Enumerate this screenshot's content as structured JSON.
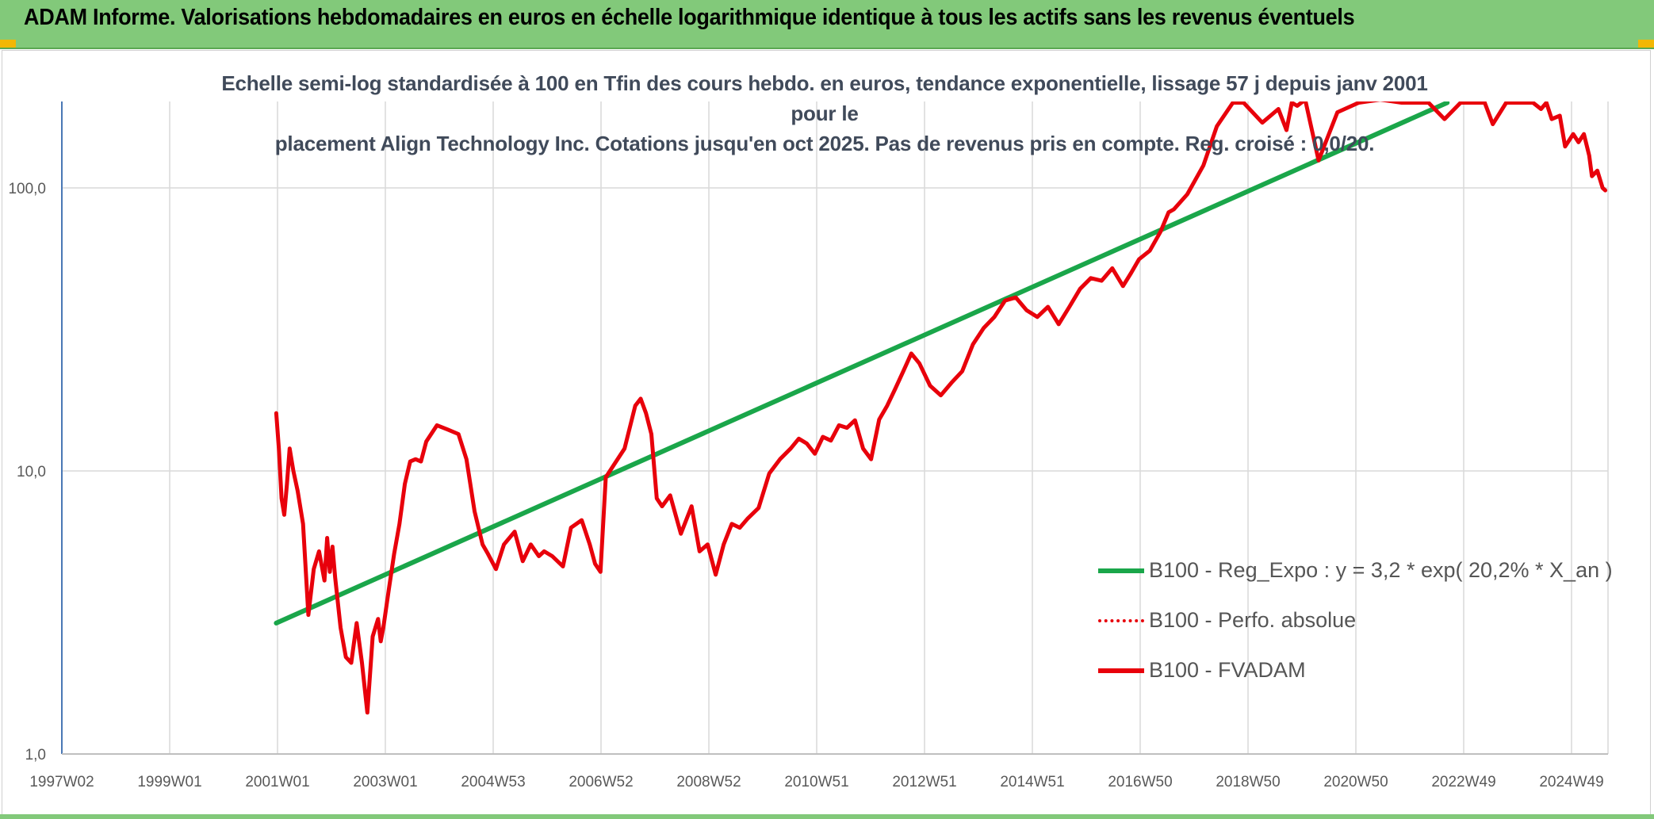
{
  "header": {
    "title": "ADAM Informe. Valorisations hebdomadaires en euros en échelle logarithmique identique à tous les actifs sans les revenus éventuels"
  },
  "colors": {
    "banner": "#82c97a",
    "trend": "#1aa64a",
    "price": "#e8000b",
    "grid": "#d9d9d9",
    "axis": "#4a78b5"
  },
  "chart_data": {
    "type": "line",
    "subtitle_lines": [
      "Echelle semi-log standardisée à 100 en Tfin des cours hebdo. en euros, tendance exponentielle, lissage 57 j depuis janv 2001 pour le",
      "placement Align Technology Inc. Cotations jusqu'en oct 2025. Pas de revenus pris en compte. Reg. croisé : 0,0/20."
    ],
    "y_scale": "log",
    "ylim": [
      1,
      200
    ],
    "y_tick_labels": [
      "1,0",
      "10,0",
      "100,0"
    ],
    "y_tick_values": [
      1,
      10,
      100
    ],
    "x_tick_labels": [
      "1997W02",
      "1999W01",
      "2001W01",
      "2003W01",
      "2004W53",
      "2006W52",
      "2008W52",
      "2010W51",
      "2012W51",
      "2014W51",
      "2016W50",
      "2018W50",
      "2020W50",
      "2022W49",
      "2024W49"
    ],
    "xlim": [
      1997.0,
      2025.85
    ],
    "grid": true,
    "legend_position": "bottom-right",
    "series": [
      {
        "name": "B100 - Reg_Expo : y = 3,2 * exp( 20,2% *  X_an )",
        "style": "solid",
        "color": "#1aa64a",
        "x": [
          2001.0,
          2022.85
        ],
        "y": [
          2.9,
          200
        ]
      },
      {
        "name": "B100 - Perfo. absolue",
        "style": "dotted",
        "color": "#e8000b",
        "x": [],
        "y": []
      },
      {
        "name": "B100 - FVADAM",
        "style": "solid",
        "color": "#e8000b",
        "x": [
          2001.0,
          2001.05,
          2001.1,
          2001.15,
          2001.2,
          2001.25,
          2001.32,
          2001.4,
          2001.5,
          2001.6,
          2001.7,
          2001.8,
          2001.9,
          2001.95,
          2002.0,
          2002.05,
          2002.1,
          2002.2,
          2002.3,
          2002.4,
          2002.5,
          2002.6,
          2002.7,
          2002.8,
          2002.9,
          2002.95,
          2003.0,
          2003.1,
          2003.2,
          2003.3,
          2003.4,
          2003.5,
          2003.6,
          2003.7,
          2003.8,
          2004.0,
          2004.2,
          2004.4,
          2004.55,
          2004.7,
          2004.85,
          2004.95,
          2005.1,
          2005.25,
          2005.45,
          2005.6,
          2005.75,
          2005.9,
          2006.0,
          2006.15,
          2006.35,
          2006.5,
          2006.7,
          2006.85,
          2006.95,
          2007.05,
          2007.15,
          2007.3,
          2007.5,
          2007.7,
          2007.8,
          2007.9,
          2008.0,
          2008.1,
          2008.2,
          2008.35,
          2008.55,
          2008.75,
          2008.9,
          2009.05,
          2009.2,
          2009.35,
          2009.5,
          2009.65,
          2009.8,
          2010.0,
          2010.2,
          2010.4,
          2010.6,
          2010.75,
          2010.9,
          2011.05,
          2011.2,
          2011.35,
          2011.5,
          2011.65,
          2011.8,
          2011.95,
          2012.1,
          2012.25,
          2012.4,
          2012.55,
          2012.7,
          2012.85,
          2013.0,
          2013.2,
          2013.4,
          2013.6,
          2013.8,
          2014.0,
          2014.2,
          2014.4,
          2014.6,
          2014.8,
          2015.0,
          2015.2,
          2015.4,
          2015.6,
          2015.8,
          2016.0,
          2016.2,
          2016.4,
          2016.6,
          2016.8,
          2016.95,
          2017.1,
          2017.3,
          2017.5,
          2017.65,
          2017.75,
          2018.0,
          2018.3,
          2018.55,
          2018.85,
          2019.05,
          2019.4,
          2019.7,
          2019.85,
          2019.95,
          2020.05,
          2020.2,
          2020.45,
          2020.8,
          2021.2,
          2021.6,
          2022.0,
          2022.2,
          2022.35,
          2022.5,
          2022.8,
          2023.1,
          2023.4,
          2023.55,
          2023.7,
          2023.95,
          2024.2,
          2024.45,
          2024.6,
          2024.7,
          2024.8,
          2024.95,
          2025.05,
          2025.2,
          2025.3,
          2025.4,
          2025.5,
          2025.55,
          2025.65,
          2025.75,
          2025.8
        ],
        "y": [
          16,
          12,
          8,
          7,
          9,
          12,
          10,
          8.5,
          6.5,
          3.1,
          4.5,
          5.2,
          4.1,
          5.8,
          4.4,
          5.4,
          4.2,
          2.8,
          2.2,
          2.1,
          2.9,
          2.1,
          1.4,
          2.6,
          3.0,
          2.5,
          2.8,
          3.8,
          5.1,
          6.5,
          9.0,
          10.8,
          11.0,
          10.8,
          12.7,
          14.5,
          14.0,
          13.5,
          11.0,
          7.2,
          5.5,
          5.1,
          4.5,
          5.5,
          6.1,
          4.8,
          5.5,
          5.0,
          5.2,
          5.0,
          4.6,
          6.3,
          6.7,
          5.5,
          4.7,
          4.4,
          9.5,
          10.5,
          12.0,
          17.0,
          18.0,
          16.0,
          13.5,
          8.0,
          7.5,
          8.2,
          6.0,
          7.5,
          5.2,
          5.5,
          4.3,
          5.5,
          6.5,
          6.3,
          6.8,
          7.4,
          9.8,
          11.0,
          12.0,
          13.0,
          12.5,
          11.5,
          13.2,
          12.8,
          14.5,
          14.2,
          15.1,
          12.0,
          11.0,
          15.2,
          17.0,
          19.5,
          22.5,
          26.0,
          24.0,
          20.0,
          18.5,
          20.5,
          22.5,
          28.0,
          32.0,
          35.0,
          40.0,
          41.0,
          37.0,
          35.0,
          38.0,
          33.0,
          38.0,
          44.0,
          48.0,
          47.0,
          52.0,
          45.0,
          50.0,
          56.0,
          60.0,
          70.0,
          82.0,
          84.0,
          95.0,
          120.0,
          165.0,
          200.0,
          200.0,
          170.0,
          190.0,
          160.0,
          200.0,
          195.0,
          205.0,
          125.0,
          185.0,
          200.0,
          205.0,
          200.0,
          200.0,
          200.0,
          200.0,
          175.0,
          200.0,
          200.0,
          200.0,
          168.0,
          200.0,
          200.0,
          200.0,
          190.0,
          200.0,
          175.0,
          180.0,
          140.0,
          155.0,
          145.0,
          155.0,
          130.0,
          110.0,
          115.0,
          100.0,
          98.0
        ]
      }
    ]
  }
}
